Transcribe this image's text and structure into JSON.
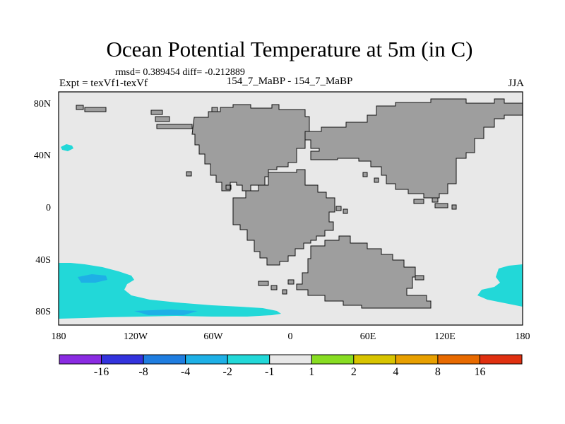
{
  "title": "Ocean Potential Temperature at 5m (in C)",
  "stats_line": "rmsd= 0.389454 diff= -0.212889",
  "experiment": "Expt = texVf1-texVf",
  "center_label": "154_7_MaBP - 154_7_MaBP",
  "season": "JJA",
  "lat_labels": [
    "80N",
    "40N",
    "0",
    "40S",
    "80S"
  ],
  "lon_labels": [
    "180",
    "120W",
    "60W",
    "0",
    "60E",
    "120E",
    "180"
  ],
  "colorbar": {
    "labels": [
      "-16",
      "-8",
      "-4",
      "-2",
      "-1",
      "1",
      "2",
      "4",
      "8",
      "16"
    ],
    "colors": [
      "#8a2be2",
      "#3333dd",
      "#1f7de0",
      "#1eb0e6",
      "#22d8d8",
      "#e8e8e8",
      "#88dd22",
      "#d8c400",
      "#e8a000",
      "#e86a00",
      "#e03010"
    ]
  },
  "colors": {
    "ocean": "#e8e8e8",
    "land": "#9e9e9e",
    "anomaly": "#22d8d8",
    "anomaly_dark": "#1eb0e6",
    "anomaly_darker": "#1f7de0"
  }
}
